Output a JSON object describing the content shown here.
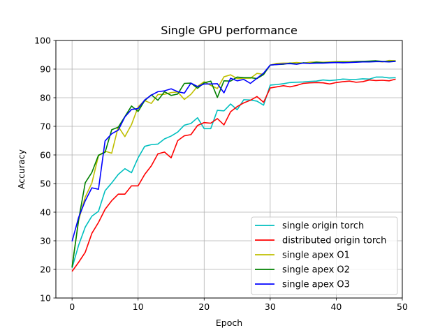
{
  "chart_data": {
    "type": "line",
    "title": "Single GPU performance",
    "xlabel": "Epoch",
    "ylabel": "Accuracy",
    "xlim": [
      -2.45,
      50
    ],
    "ylim": [
      10,
      100
    ],
    "xticks": [
      0,
      10,
      20,
      30,
      40,
      50
    ],
    "yticks": [
      10,
      20,
      30,
      40,
      50,
      60,
      70,
      80,
      90,
      100
    ],
    "grid": true,
    "legend_position": "lower-right",
    "x": [
      0,
      1,
      2,
      3,
      4,
      5,
      6,
      7,
      8,
      9,
      10,
      11,
      12,
      13,
      14,
      15,
      16,
      17,
      18,
      19,
      20,
      21,
      22,
      23,
      24,
      25,
      26,
      27,
      28,
      29,
      30,
      31,
      32,
      33,
      34,
      35,
      36,
      37,
      38,
      39,
      40,
      41,
      42,
      43,
      44,
      45,
      46,
      47,
      48,
      49
    ],
    "series": [
      {
        "name": "single origin torch",
        "color": "#00bfbf",
        "values": [
          20.5,
          28.5,
          34.8,
          38.6,
          40.3,
          47.5,
          50.2,
          53.2,
          55.2,
          53.8,
          59.0,
          63.0,
          63.6,
          63.8,
          65.6,
          66.6,
          68.0,
          70.4,
          71.0,
          73.0,
          69.2,
          69.2,
          75.6,
          75.4,
          77.8,
          75.8,
          79.3,
          79.2,
          78.8,
          77.4,
          84.4,
          84.6,
          84.9,
          85.3,
          85.4,
          85.5,
          85.7,
          85.8,
          86.2,
          86.0,
          86.2,
          86.5,
          86.4,
          86.4,
          86.6,
          86.5,
          87.2,
          87.2,
          86.9,
          87.0
        ]
      },
      {
        "name": "distributed origin torch",
        "color": "#ff0000",
        "values": [
          19.3,
          22.5,
          26.0,
          32.6,
          36.4,
          41.0,
          44.0,
          46.3,
          46.3,
          49.2,
          49.2,
          53.2,
          56.2,
          60.4,
          61.0,
          59.0,
          65.0,
          66.7,
          67.1,
          70.3,
          71.3,
          71.1,
          72.7,
          70.5,
          75.1,
          76.9,
          78.2,
          79.1,
          80.4,
          78.4,
          83.4,
          83.8,
          84.2,
          83.8,
          84.3,
          85.0,
          85.2,
          85.3,
          85.2,
          84.8,
          85.3,
          85.6,
          85.8,
          85.4,
          85.6,
          86.2,
          86.0,
          86.1,
          85.9,
          86.5
        ]
      },
      {
        "name": "single apex O1",
        "color": "#bfbf00",
        "values": [
          21.0,
          37.2,
          45.3,
          50.2,
          59.7,
          61.3,
          60.6,
          69.9,
          66.4,
          70.6,
          76.8,
          79.0,
          78.0,
          81.1,
          81.2,
          81.8,
          82.0,
          79.4,
          81.2,
          84.0,
          85.6,
          84.3,
          83.2,
          87.3,
          88.0,
          86.7,
          86.8,
          86.8,
          88.5,
          88.2,
          91.4,
          92.0,
          92.1,
          92.1,
          92.3,
          92.1,
          92.4,
          92.5,
          92.4,
          92.5,
          92.6,
          92.6,
          92.6,
          92.7,
          92.7,
          92.7,
          92.8,
          92.5,
          93.0,
          92.9
        ]
      },
      {
        "name": "single apex O2",
        "color": "#008000",
        "values": [
          20.7,
          37.4,
          50.3,
          53.9,
          59.9,
          60.9,
          68.8,
          69.7,
          73.4,
          77.1,
          75.2,
          79.0,
          81.0,
          79.1,
          82.1,
          80.8,
          81.3,
          85.0,
          85.1,
          83.3,
          85.2,
          85.8,
          80.1,
          85.9,
          85.8,
          87.2,
          87.0,
          87.0,
          86.7,
          88.1,
          91.4,
          91.6,
          91.7,
          92.1,
          91.8,
          92.2,
          92.0,
          92.4,
          92.2,
          92.3,
          92.4,
          92.4,
          92.4,
          92.6,
          92.7,
          92.8,
          92.9,
          92.7,
          92.7,
          92.8
        ]
      },
      {
        "name": "single apex O3",
        "color": "#0000ff",
        "values": [
          29.8,
          38.2,
          44.0,
          48.5,
          48.0,
          64.9,
          67.4,
          68.7,
          73.3,
          75.9,
          76.2,
          79.2,
          80.9,
          82.1,
          82.4,
          83.1,
          82.1,
          81.6,
          85.1,
          83.9,
          84.8,
          84.8,
          84.9,
          81.7,
          86.8,
          85.9,
          86.4,
          85.0,
          86.8,
          88.6,
          91.4,
          91.6,
          91.8,
          91.9,
          91.7,
          92.1,
          92.0,
          92.1,
          92.1,
          92.2,
          92.3,
          92.2,
          92.3,
          92.4,
          92.5,
          92.5,
          92.6,
          92.6,
          92.5,
          92.7
        ]
      }
    ]
  }
}
